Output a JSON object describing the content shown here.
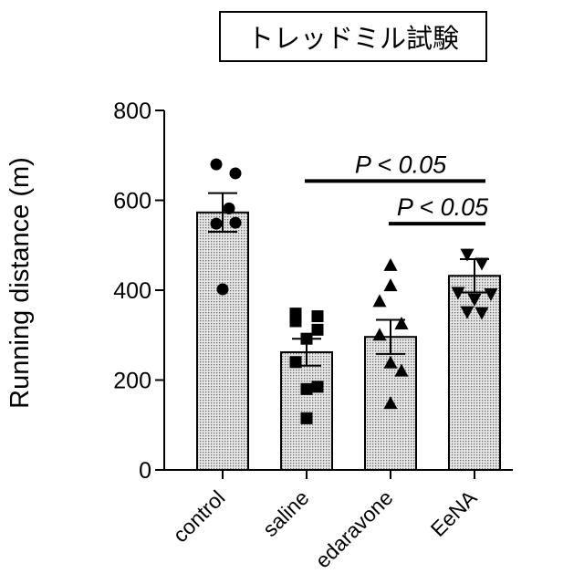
{
  "header": {
    "title": "トレッドミル試験"
  },
  "chart_data": {
    "type": "bar",
    "title": "トレッドミル試験",
    "xlabel": "",
    "ylabel": "Running distance (m)",
    "ylim": [
      0,
      800
    ],
    "yticks": [
      0,
      200,
      400,
      600,
      800
    ],
    "categories": [
      "control",
      "saline",
      "edaravone",
      "EeNA"
    ],
    "values": [
      573,
      262,
      296,
      432
    ],
    "sem": [
      43,
      30,
      38,
      37
    ],
    "points": [
      [
        680,
        660,
        582,
        548,
        550,
        402
      ],
      [
        348,
        342,
        331,
        312,
        292,
        240,
        185,
        180,
        115
      ],
      [
        455,
        410,
        375,
        325,
        300,
        238,
        220,
        148
      ],
      [
        480,
        460,
        395,
        392,
        380,
        352,
        350
      ]
    ],
    "markers": [
      "circle",
      "square",
      "triangle-up",
      "triangle-down"
    ],
    "annotations": [
      {
        "text": "P < 0.05",
        "from": "saline",
        "to": "EeNA",
        "y": 643
      },
      {
        "text": "P < 0.05",
        "from": "edaravone",
        "to": "EeNA",
        "y": 548
      }
    ],
    "bar_fill": "dotted-gray",
    "grid": false,
    "legend": "none"
  }
}
